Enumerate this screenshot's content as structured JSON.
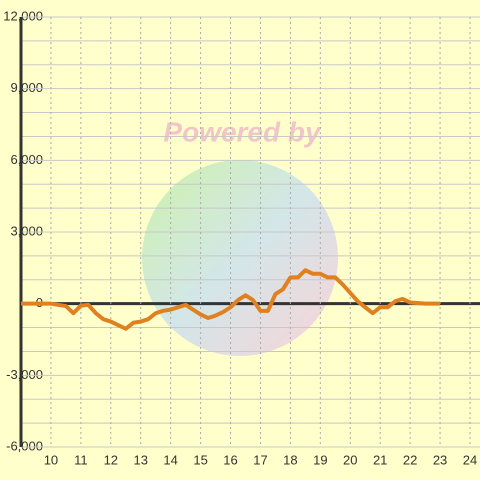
{
  "chart_data": {
    "type": "line",
    "watermark": "Powered by",
    "x": [
      9,
      9.5,
      10,
      10.5,
      10.75,
      11,
      11.25,
      11.5,
      11.75,
      12,
      12.25,
      12.5,
      12.75,
      13,
      13.25,
      13.5,
      13.75,
      14,
      14.25,
      14.5,
      14.75,
      15,
      15.25,
      15.5,
      15.75,
      16,
      16.25,
      16.5,
      16.75,
      17,
      17.25,
      17.5,
      17.75,
      18,
      18.25,
      18.5,
      18.75,
      19,
      19.25,
      19.5,
      19.75,
      20,
      20.25,
      20.5,
      20.75,
      21,
      21.25,
      21.5,
      21.75,
      22,
      22.5,
      23
    ],
    "series": [
      {
        "color": "#e08020",
        "values": [
          0,
          0,
          0,
          -100,
          -400,
          -80,
          -50,
          -400,
          -650,
          -750,
          -900,
          -1050,
          -800,
          -750,
          -650,
          -400,
          -300,
          -250,
          -150,
          -50,
          -250,
          -450,
          -600,
          -500,
          -350,
          -150,
          150,
          350,
          150,
          -300,
          -300,
          400,
          600,
          1100,
          1100,
          1400,
          1250,
          1250,
          1100,
          1100,
          800,
          450,
          100,
          -150,
          -400,
          -150,
          -150,
          100,
          200,
          50,
          0,
          0
        ]
      }
    ],
    "xlim": [
      9,
      24
    ],
    "xticks": [
      10,
      11,
      12,
      13,
      14,
      15,
      16,
      17,
      18,
      19,
      20,
      21,
      22,
      23,
      24
    ],
    "ylim": [
      -6000,
      12000
    ],
    "yticks": [
      {
        "value": -6000,
        "label": "-6,000"
      },
      {
        "value": -3000,
        "label": "-3,000"
      },
      0,
      {
        "value": 3000,
        "label": "3,000"
      },
      {
        "value": 6000,
        "label": "6,000"
      },
      {
        "value": 9000,
        "label": "9,000"
      },
      {
        "value": 12000,
        "label": "12,000"
      }
    ],
    "ygrid_minor": [
      -5000,
      -4000,
      -2000,
      -1000,
      1000,
      2000,
      4000,
      5000,
      7000,
      8000,
      10000,
      11000
    ],
    "grid": true
  }
}
